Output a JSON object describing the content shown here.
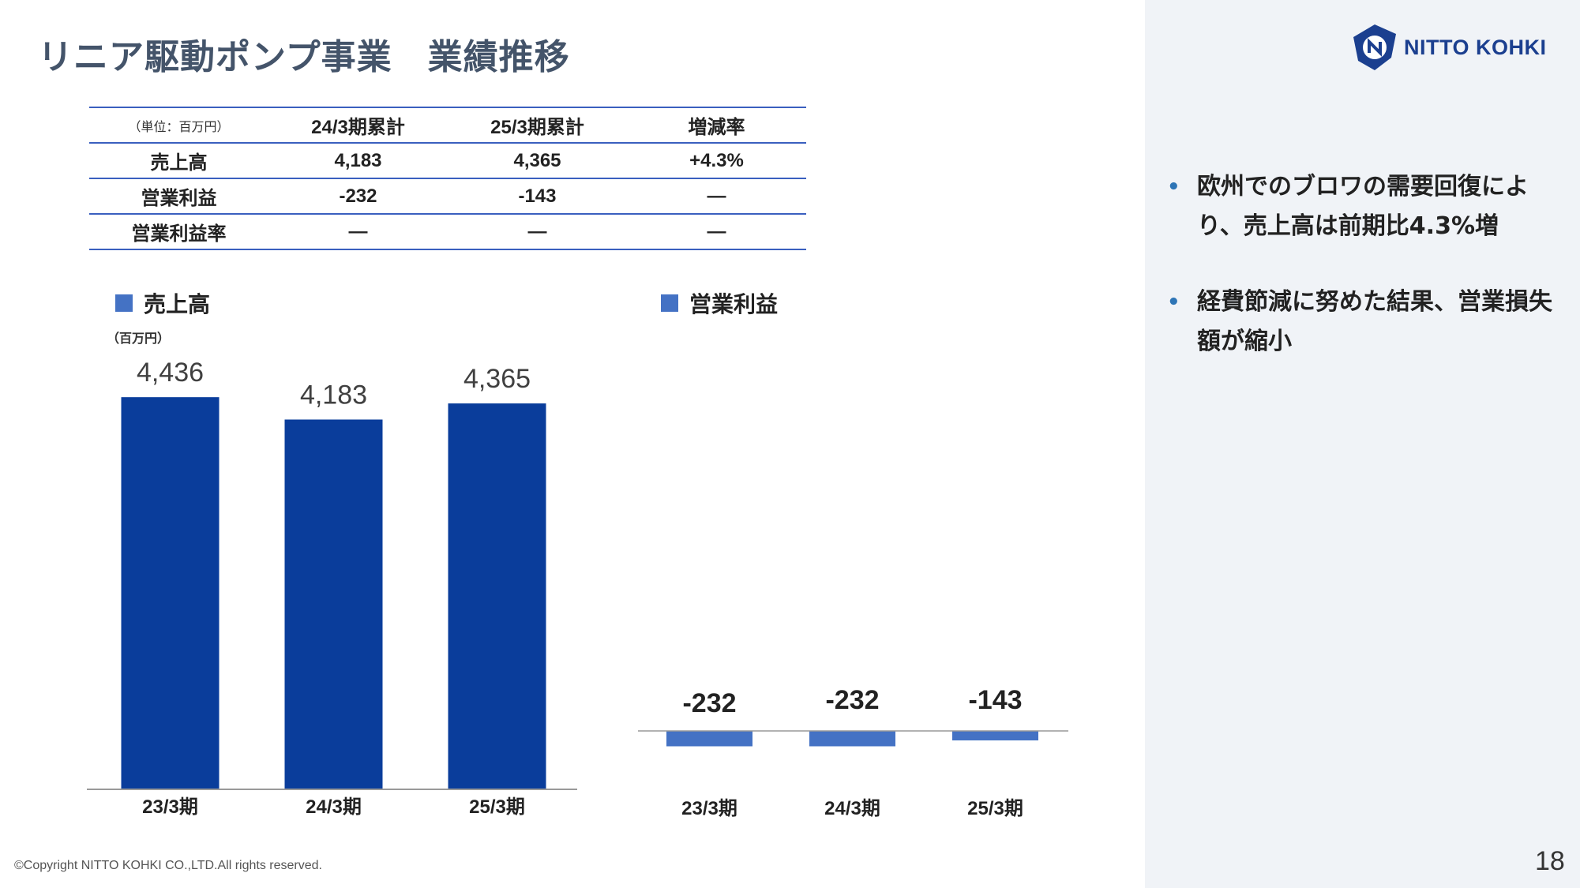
{
  "title": "リニア駆動ポンプ事業　業績推移",
  "logo": {
    "text": "NITTO KOHKI",
    "icon": "nitto-kohki-logo-icon"
  },
  "table": {
    "unit": "（単位：百万円）",
    "headers": [
      "24/3期累計",
      "25/3期累計",
      "増減率"
    ],
    "rows": [
      {
        "label": "売上高",
        "cells": [
          "4,183",
          "4,365",
          "+4.3%"
        ]
      },
      {
        "label": "営業利益",
        "cells": [
          "-232",
          "-143",
          "―"
        ]
      },
      {
        "label": "営業利益率",
        "cells": [
          "―",
          "―",
          "―"
        ]
      }
    ]
  },
  "unit_note": "（百万円）",
  "chart_data": [
    {
      "type": "bar",
      "legend": "売上高",
      "categories": [
        "23/3期",
        "24/3期",
        "25/3期"
      ],
      "values": [
        4436,
        4183,
        4365
      ],
      "value_labels": [
        "4,436",
        "4,183",
        "4,365"
      ],
      "color": "#0a3d9b",
      "ylim": [
        0,
        5000
      ]
    },
    {
      "type": "bar",
      "legend": "営業利益",
      "categories": [
        "23/3期",
        "24/3期",
        "25/3期"
      ],
      "values": [
        -232,
        -232,
        -143
      ],
      "value_labels": [
        "-232",
        "-232",
        "-143"
      ],
      "color": "#4472c4",
      "ylim": [
        -5000,
        5000
      ]
    }
  ],
  "bullets": [
    "欧州でのブロワの需要回復により、売上高は前期比4.3%増",
    "経費節減に努めた結果、営業損失額が縮小"
  ],
  "footer": "©Copyright NITTO KOHKI CO.,LTD.All rights reserved.",
  "page_number": "18"
}
